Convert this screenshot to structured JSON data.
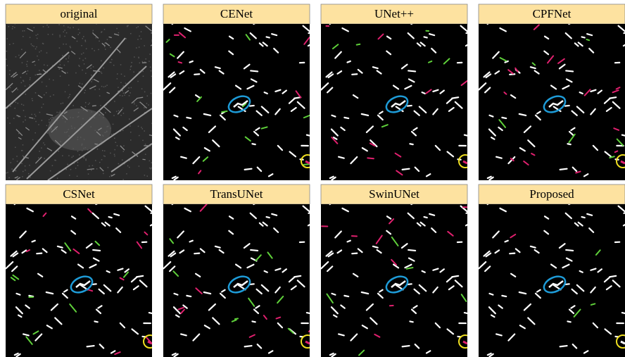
{
  "panels": [
    {
      "label": "original"
    },
    {
      "label": "CENet"
    },
    {
      "label": "UNet++"
    },
    {
      "label": "CPFNet"
    },
    {
      "label": "CSNet"
    },
    {
      "label": "TransUNet"
    },
    {
      "label": "SwinUNet"
    },
    {
      "label": "Proposed"
    }
  ]
}
